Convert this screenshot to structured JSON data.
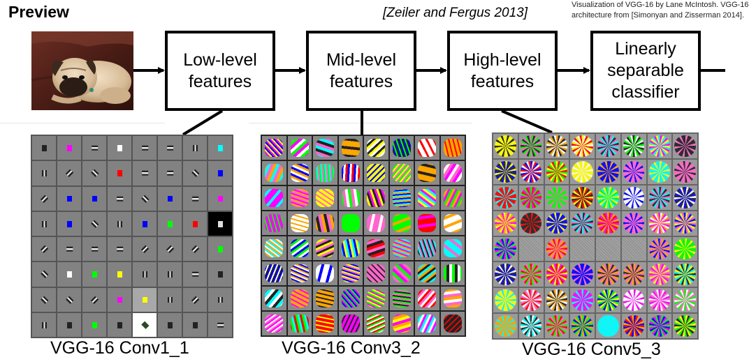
{
  "slide": {
    "title": "Preview",
    "citation": "[Zeiler and Fergus 2013]",
    "credit_line1": "Visualization of VGG-16 by Lane McIntosh. VGG-16",
    "credit_line2": "architecture from [Simonyan and Zisserman 2014]."
  },
  "pipeline": {
    "stages": [
      {
        "line1": "Low-level",
        "line2": "features"
      },
      {
        "line1": "Mid-level",
        "line2": "features"
      },
      {
        "line1": "High-level",
        "line2": "features"
      },
      {
        "line1": "Linearly",
        "line2": "separable",
        "line3": "classifier"
      }
    ]
  },
  "panels": [
    {
      "caption": "VGG-16 Conv1_1"
    },
    {
      "caption": "VGG-16 Conv3_2"
    },
    {
      "caption": "VGG-16 Conv5_3"
    }
  ],
  "colors": {
    "box_border": "#000000",
    "arrow": "#000000",
    "conv1_background": "#828282"
  },
  "icons": {
    "input_image": "pug-dog-photo"
  }
}
